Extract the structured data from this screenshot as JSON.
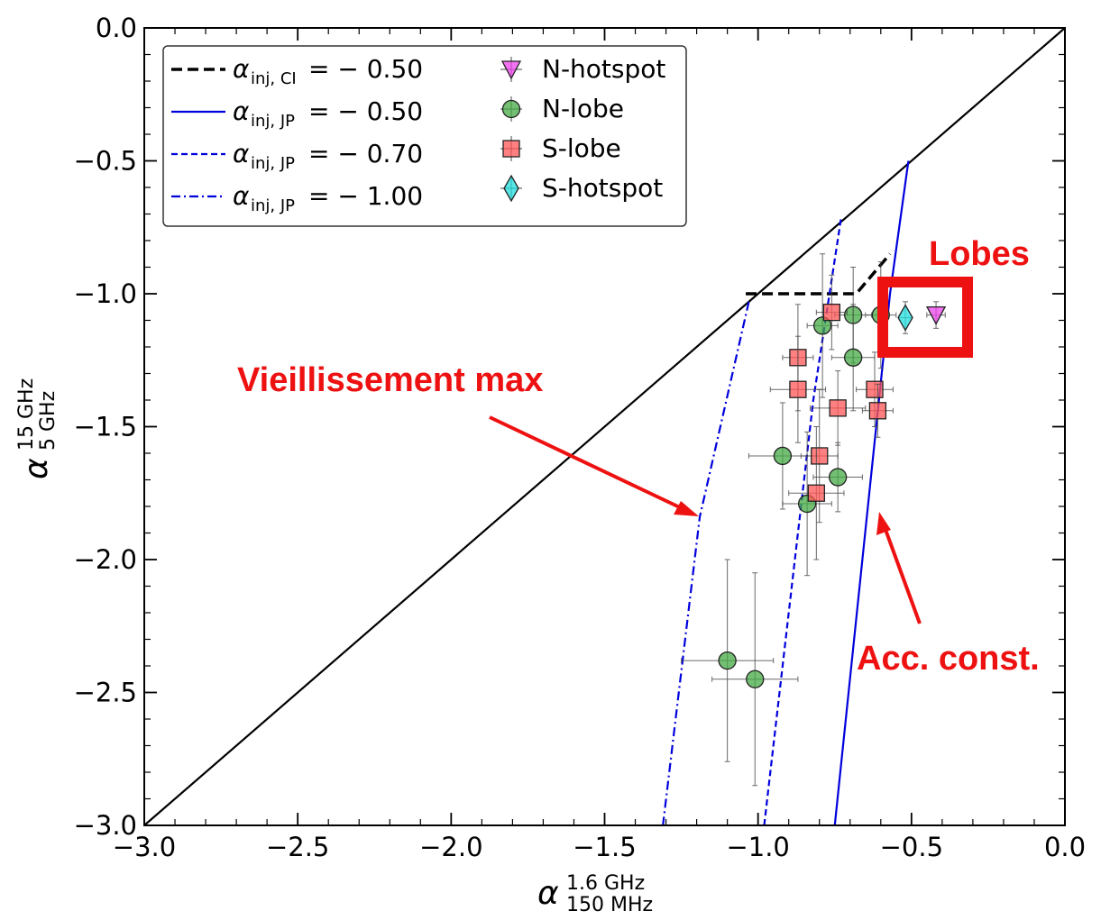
{
  "chart_data": {
    "type": "scatter",
    "xlabel": {
      "symbol": "α",
      "sup": "1.6 GHz",
      "sub": "150 MHz"
    },
    "ylabel": {
      "symbol": "α",
      "sup": "15 GHz",
      "sub": "5 GHz"
    },
    "xlim": [
      -3.0,
      0.0
    ],
    "ylim": [
      -3.0,
      0.0
    ],
    "xticks": [
      "−3.0",
      "−2.5",
      "−2.0",
      "−1.5",
      "−1.0",
      "−0.5",
      "0.0"
    ],
    "yticks": [
      "0.0",
      "−0.5",
      "−1.0",
      "−1.5",
      "−2.0",
      "−2.5",
      "−3.0"
    ],
    "grid": false,
    "legend_position": "top-left",
    "legend_lines": [
      {
        "name": "α",
        "sub": "inj, CI",
        "value": "= − 0.50",
        "style": "dashed-thick",
        "color": "#000000"
      },
      {
        "name": "α",
        "sub": "inj, JP",
        "value": "= − 0.50",
        "style": "solid",
        "color": "#0000dd"
      },
      {
        "name": "α",
        "sub": "inj, JP",
        "value": "= − 0.70",
        "style": "dashed",
        "color": "#0000dd"
      },
      {
        "name": "α",
        "sub": "inj, JP",
        "value": "= − 1.00",
        "style": "dashdot",
        "color": "#0000dd"
      }
    ],
    "series": [
      {
        "name": "N-hotspot",
        "marker": "triangle-down",
        "color": "#ee44ee",
        "points": [
          {
            "x": -0.42,
            "y": -1.08,
            "xerr": 0.03,
            "yerr": 0.05
          }
        ]
      },
      {
        "name": "N-lobe",
        "marker": "circle",
        "color": "#44aa44",
        "points": [
          {
            "x": -0.79,
            "y": -1.12,
            "xerr": 0.05,
            "yerr": 0.27
          },
          {
            "x": -0.69,
            "y": -1.08,
            "xerr": 0.06,
            "yerr": 0.18
          },
          {
            "x": -0.6,
            "y": -1.08,
            "xerr": 0.05,
            "yerr": 0.2
          },
          {
            "x": -0.69,
            "y": -1.24,
            "xerr": 0.07,
            "yerr": 0.2
          },
          {
            "x": -0.92,
            "y": -1.61,
            "xerr": 0.11,
            "yerr": 0.2
          },
          {
            "x": -0.74,
            "y": -1.69,
            "xerr": 0.08,
            "yerr": 0.13
          },
          {
            "x": -0.84,
            "y": -1.79,
            "xerr": 0.08,
            "yerr": 0.27
          },
          {
            "x": -1.1,
            "y": -2.38,
            "xerr": 0.15,
            "yerr": 0.38
          },
          {
            "x": -1.01,
            "y": -2.45,
            "xerr": 0.14,
            "yerr": 0.4
          }
        ]
      },
      {
        "name": "S-lobe",
        "marker": "square",
        "color": "#ff5555",
        "points": [
          {
            "x": -0.76,
            "y": -1.07,
            "xerr": 0.05,
            "yerr": 0.14
          },
          {
            "x": -0.87,
            "y": -1.24,
            "xerr": 0.05,
            "yerr": 0.2
          },
          {
            "x": -0.87,
            "y": -1.36,
            "xerr": 0.09,
            "yerr": 0.2
          },
          {
            "x": -0.62,
            "y": -1.36,
            "xerr": 0.06,
            "yerr": 0.14
          },
          {
            "x": -0.74,
            "y": -1.43,
            "xerr": 0.09,
            "yerr": 0.14
          },
          {
            "x": -0.61,
            "y": -1.44,
            "xerr": 0.05,
            "yerr": 0.1
          },
          {
            "x": -0.8,
            "y": -1.61,
            "xerr": 0.06,
            "yerr": 0.25
          },
          {
            "x": -0.81,
            "y": -1.75,
            "xerr": 0.09,
            "yerr": 0.25
          }
        ]
      },
      {
        "name": "S-hotspot",
        "marker": "diamond",
        "color": "#22dddd",
        "points": [
          {
            "x": -0.52,
            "y": -1.09,
            "xerr": 0.02,
            "yerr": 0.06
          }
        ]
      }
    ],
    "curves": [
      {
        "legend": 0,
        "color": "#000000",
        "points": [
          [
            -1.04,
            -1.0
          ],
          [
            -0.68,
            -1.0
          ],
          [
            -0.57,
            -0.85
          ]
        ]
      },
      {
        "legend": 1,
        "color": "#0000dd",
        "points": [
          [
            -0.51,
            -0.5
          ],
          [
            -0.57,
            -1.0
          ],
          [
            -0.75,
            -3.0
          ]
        ]
      },
      {
        "legend": 2,
        "color": "#0000dd",
        "points": [
          [
            -0.73,
            -0.72
          ],
          [
            -0.82,
            -1.4
          ],
          [
            -0.98,
            -3.0
          ]
        ]
      },
      {
        "legend": 3,
        "color": "#0000dd",
        "points": [
          [
            -1.03,
            -1.03
          ],
          [
            -1.19,
            -1.84
          ],
          [
            -1.31,
            -3.0
          ]
        ]
      }
    ],
    "annotations": {
      "lobes": "Lobes",
      "max_aging": "Vieillissement max",
      "const_acc": "Acc. const."
    }
  }
}
